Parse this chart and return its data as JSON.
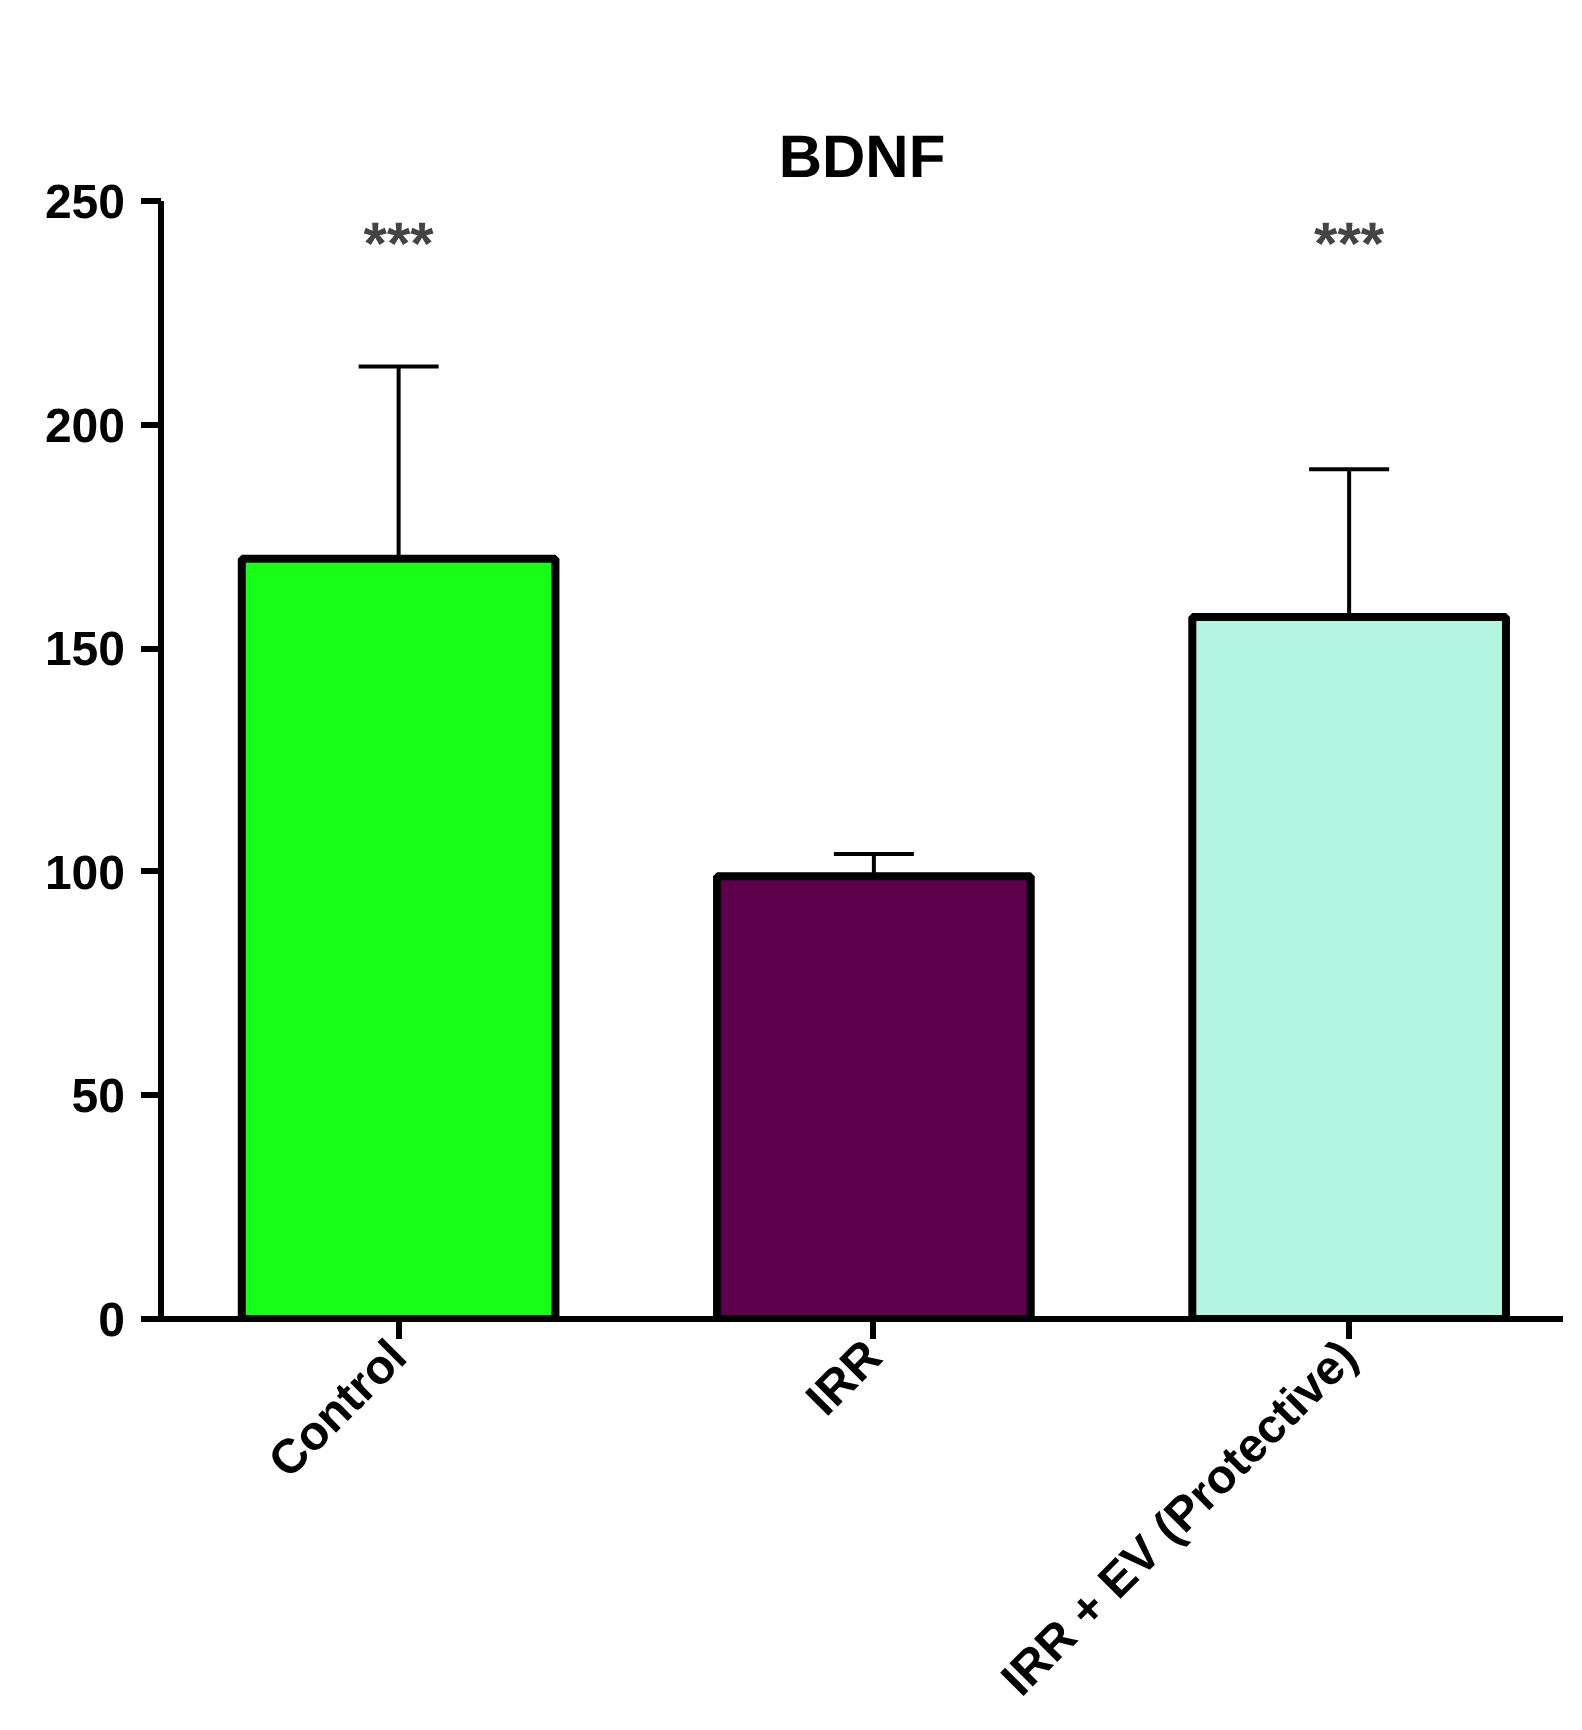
{
  "chart_data": {
    "type": "bar",
    "title": "BDNF",
    "categories": [
      "Control",
      "IRR",
      "IRR + EV (Protective)"
    ],
    "values": [
      170,
      99,
      157
    ],
    "colors": [
      "#16ff16",
      "#5e004c",
      "#b3f5e0"
    ],
    "errors": [
      43,
      5,
      33
    ],
    "ylim": [
      0,
      250
    ],
    "yticks": [
      0,
      50,
      100,
      150,
      200,
      250
    ],
    "grid": false,
    "annotations": [
      "***",
      "***"
    ]
  }
}
